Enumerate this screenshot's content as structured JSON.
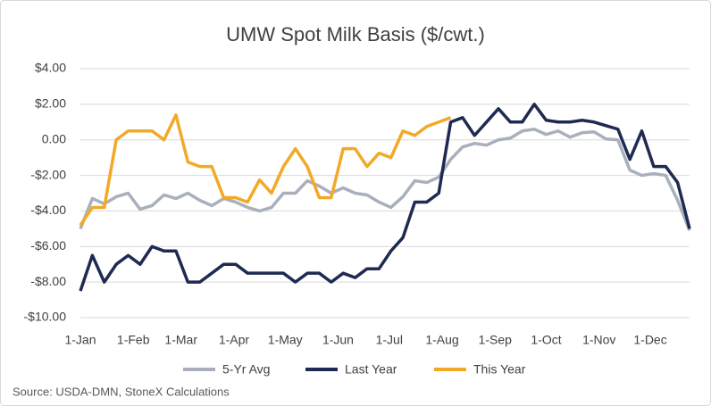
{
  "chart_data": {
    "type": "line",
    "title": "UMW Spot Milk Basis ($/cwt.)",
    "source": "Source: USDA-DMN, StoneX Calculations",
    "x": [
      1,
      8,
      15,
      22,
      29,
      36,
      43,
      50,
      57,
      64,
      71,
      78,
      85,
      92,
      99,
      106,
      113,
      120,
      127,
      134,
      141,
      148,
      155,
      162,
      169,
      176,
      183,
      190,
      197,
      204,
      211,
      218,
      225,
      232,
      239,
      246,
      253,
      260,
      267,
      274,
      281,
      288,
      295,
      302,
      309,
      316,
      323,
      330,
      337,
      344,
      351,
      358
    ],
    "xlim": [
      1,
      358
    ],
    "xticks": [
      {
        "value": 1,
        "label": "1-Jan"
      },
      {
        "value": 32,
        "label": "1-Feb"
      },
      {
        "value": 60,
        "label": "1-Mar"
      },
      {
        "value": 91,
        "label": "1-Apr"
      },
      {
        "value": 121,
        "label": "1-May"
      },
      {
        "value": 152,
        "label": "1-Jun"
      },
      {
        "value": 182,
        "label": "1-Jul"
      },
      {
        "value": 213,
        "label": "1-Aug"
      },
      {
        "value": 244,
        "label": "1-Sep"
      },
      {
        "value": 274,
        "label": "1-Oct"
      },
      {
        "value": 305,
        "label": "1-Nov"
      },
      {
        "value": 335,
        "label": "1-Dec"
      }
    ],
    "ylim": [
      -10,
      4
    ],
    "yticks": [
      {
        "value": -10,
        "label": "-$10.00"
      },
      {
        "value": -8,
        "label": "-$8.00"
      },
      {
        "value": -6,
        "label": "-$6.00"
      },
      {
        "value": -4,
        "label": "-$4.00"
      },
      {
        "value": -2,
        "label": "-$2.00"
      },
      {
        "value": 0,
        "label": "0.00"
      },
      {
        "value": 2,
        "label": "$2.00"
      },
      {
        "value": 4,
        "label": "$4.00"
      }
    ],
    "grid": true,
    "legend": "bottom",
    "series": [
      {
        "name": "5-Yr Avg",
        "color": "#a9b0bb",
        "values": [
          -5.0,
          -3.3,
          -3.6,
          -3.2,
          -3.0,
          -3.9,
          -3.7,
          -3.1,
          -3.3,
          -3.0,
          -3.4,
          -3.7,
          -3.3,
          -3.5,
          -3.8,
          -4.0,
          -3.8,
          -3.0,
          -3.0,
          -2.3,
          -2.6,
          -3.0,
          -2.7,
          -3.0,
          -3.1,
          -3.5,
          -3.8,
          -3.2,
          -2.3,
          -2.4,
          -2.1,
          -1.1,
          -0.4,
          -0.2,
          -0.3,
          0.0,
          0.1,
          0.5,
          0.6,
          0.3,
          0.5,
          0.15,
          0.4,
          0.45,
          0.05,
          0.0,
          -1.7,
          -2.0,
          -1.9,
          -2.0,
          -3.4,
          -5.1
        ]
      },
      {
        "name": "Last Year",
        "color": "#1f2a52",
        "values": [
          -8.5,
          -6.5,
          -8.0,
          -7.0,
          -6.5,
          -7.0,
          -6.0,
          -6.25,
          -6.25,
          -8.0,
          -8.0,
          -7.5,
          -7.0,
          -7.0,
          -7.5,
          -7.5,
          -7.5,
          -7.5,
          -8.0,
          -7.5,
          -7.5,
          -8.0,
          -7.5,
          -7.75,
          -7.25,
          -7.25,
          -6.25,
          -5.5,
          -3.5,
          -3.5,
          -3.0,
          1.0,
          1.25,
          0.25,
          1.0,
          1.75,
          1.0,
          1.0,
          2.0,
          1.1,
          1.0,
          1.0,
          1.1,
          1.0,
          0.8,
          0.6,
          -1.1,
          0.5,
          -1.5,
          -1.5,
          -2.4,
          -5.0
        ]
      },
      {
        "name": "This Year",
        "color": "#f2a928",
        "values": [
          -4.8,
          -3.8,
          -3.8,
          0.0,
          0.5,
          0.5,
          0.5,
          0.0,
          1.4,
          -1.25,
          -1.5,
          -1.5,
          -3.25,
          -3.25,
          -3.5,
          -2.25,
          -3.0,
          -1.5,
          -0.5,
          -1.5,
          -3.25,
          -3.25,
          -0.5,
          -0.5,
          -1.5,
          -0.75,
          -1.0,
          0.5,
          0.25,
          0.75,
          1.0,
          1.25,
          null,
          null,
          null,
          null,
          null,
          null,
          null,
          null,
          null,
          null,
          null,
          null,
          null,
          null,
          null,
          null,
          null,
          null,
          null,
          null
        ]
      }
    ]
  }
}
